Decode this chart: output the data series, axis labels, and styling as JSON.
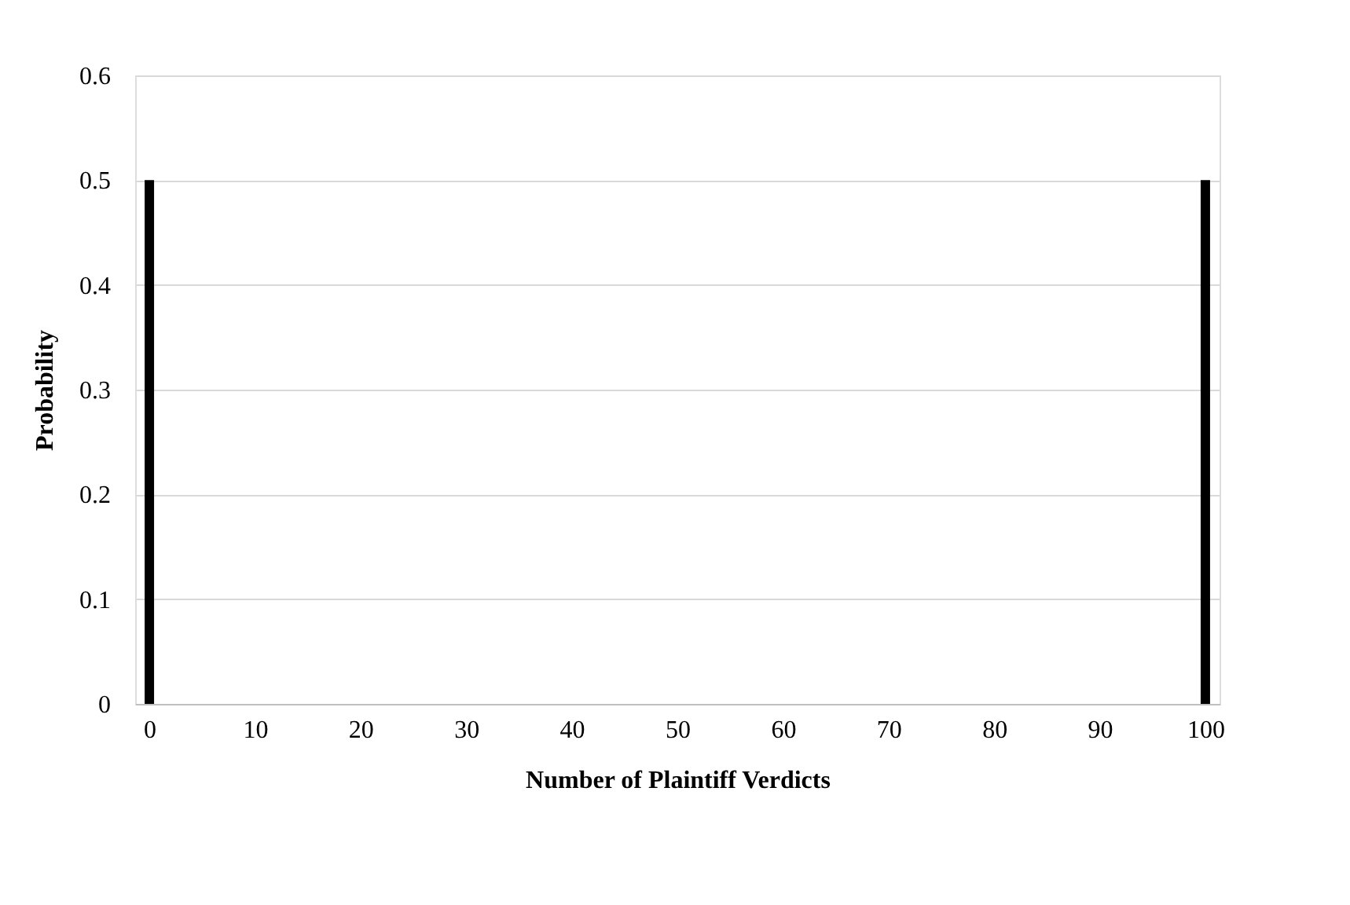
{
  "chart_data": {
    "type": "bar",
    "xlabel": "Number of Plaintiff Verdicts",
    "ylabel": "Probability",
    "x": [
      0,
      100
    ],
    "values": [
      0.5,
      0.5
    ],
    "color": "#000000",
    "xlim": [
      -0.6,
      100.6
    ],
    "xticks": [
      0,
      10,
      20,
      30,
      40,
      50,
      60,
      70,
      80,
      90,
      100
    ],
    "ylim": [
      0,
      0.6
    ],
    "yticks": [
      0,
      0.1,
      0.2,
      0.3,
      0.4,
      0.5,
      0.6
    ],
    "grid": "y"
  }
}
